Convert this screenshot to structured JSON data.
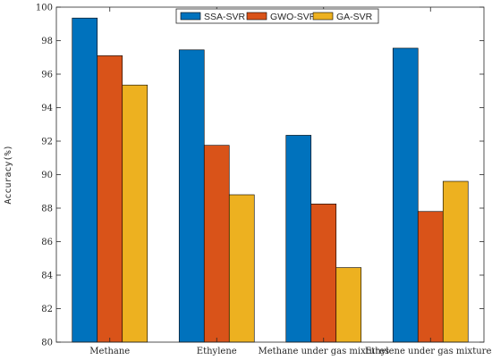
{
  "chart_data": {
    "type": "bar",
    "title": "",
    "xlabel": "",
    "ylabel": "Accuracy(%)",
    "categories": [
      "Methane",
      "Ethylene",
      "Methane under gas mixtures",
      "Ethylene under gas mixtures"
    ],
    "series": [
      {
        "name": "SSA-SVR",
        "color": "#0072BD",
        "values": [
          99.35,
          97.45,
          92.35,
          97.55
        ]
      },
      {
        "name": "GWO-SVR",
        "color": "#D95319",
        "values": [
          97.1,
          91.75,
          88.25,
          87.8
        ]
      },
      {
        "name": "GA-SVR",
        "color": "#EDB120",
        "values": [
          95.35,
          88.8,
          84.45,
          89.6
        ]
      }
    ],
    "ylim": [
      80,
      100
    ],
    "yticks": [
      80,
      82,
      84,
      86,
      88,
      90,
      92,
      94,
      96,
      98,
      100
    ],
    "grid": false,
    "legend_position": "top-center",
    "legend_orientation": "horizontal"
  }
}
